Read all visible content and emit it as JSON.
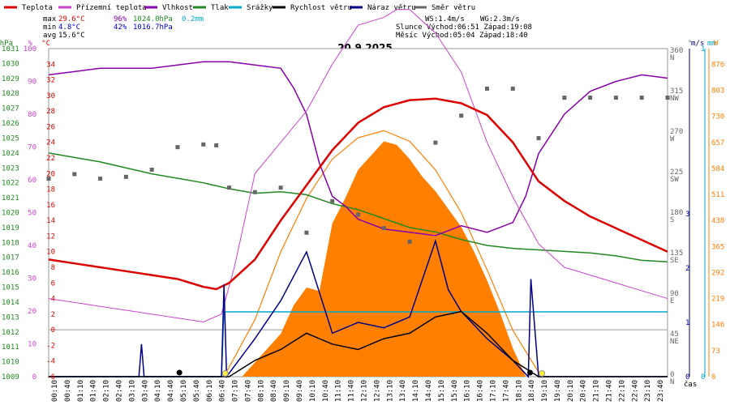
{
  "chart_data": {
    "type": "line",
    "title": "20.9.2025",
    "xlabel": "čas",
    "legend": [
      {
        "name": "Teplota",
        "color": "#dd0000"
      },
      {
        "name": "Přízemní teplota",
        "color": "#cc44cc"
      },
      {
        "name": "Vlhkost",
        "color": "#8800aa"
      },
      {
        "name": "Tlak",
        "color": "#228822"
      },
      {
        "name": "Srážky",
        "color": "#00aacc"
      },
      {
        "name": "Rychlost větru",
        "color": "#000000"
      },
      {
        "name": "Náraz větru",
        "color": "#000088"
      },
      {
        "name": "Směr větru",
        "color": "#666666"
      }
    ],
    "stats": {
      "max_label": "max",
      "max_temp": "29.6°C",
      "max_hum": "96%",
      "max_press": "1024.0hPa",
      "max_rain": "0.2mm",
      "min_label": "min",
      "min_temp": "4.8°C",
      "min_hum": "42%",
      "min_press": "1016.7hPa",
      "avg_label": "avg",
      "avg_temp": "15.6°C"
    },
    "info": {
      "ws": "WS:1.4m/s",
      "wg": "WG:2.3m/s",
      "sun": "Slunce Východ:06:51  Západ:19:08",
      "moon": "Měsíc  Východ:05:04  Západ:18:40"
    },
    "axes": {
      "press_unit": "hPa",
      "hum_unit": "%",
      "temp_unit": "°C",
      "dir_unit": "°",
      "wind_unit": "m/s",
      "rain_unit": "mm",
      "solar_unit": "W",
      "press_range": [
        1009,
        1031
      ],
      "press_ticks": [
        1009,
        1010,
        1011,
        1012,
        1013,
        1014,
        1015,
        1016,
        1017,
        1018,
        1019,
        1020,
        1021,
        1022,
        1023,
        1024,
        1025,
        1026,
        1027,
        1028,
        1029,
        1030,
        1031
      ],
      "hum_range": [
        0,
        100
      ],
      "hum_ticks": [
        0,
        10,
        20,
        30,
        40,
        50,
        60,
        70,
        80,
        90,
        100
      ],
      "temp_range": [
        -6,
        36
      ],
      "temp_ticks": [
        -6,
        -4,
        -2,
        0,
        2,
        4,
        6,
        8,
        10,
        12,
        14,
        16,
        18,
        20,
        22,
        24,
        26,
        28,
        30,
        32,
        34
      ],
      "dir_ticks": [
        {
          "v": "0",
          "l": "N"
        },
        {
          "v": "45",
          "l": "NE"
        },
        {
          "v": "90",
          "l": "E"
        },
        {
          "v": "135",
          "l": "SE"
        },
        {
          "v": "180",
          "l": "S"
        },
        {
          "v": "225",
          "l": "SW"
        },
        {
          "v": "270",
          "l": "W"
        },
        {
          "v": "315",
          "l": "NW"
        },
        {
          "v": "360",
          "l": "N"
        }
      ],
      "wind_ticks": [
        "0",
        "1",
        "2",
        "3"
      ],
      "rain_ticks": [
        "0",
        "1"
      ],
      "solar_range": [
        0,
        920
      ],
      "solar_ticks": [
        0,
        73,
        146,
        219,
        292,
        365,
        438,
        511,
        584,
        657,
        730,
        803,
        876
      ]
    },
    "time_labels": [
      "00:10",
      "00:40",
      "01:10",
      "01:40",
      "02:10",
      "02:40",
      "03:10",
      "03:40",
      "04:10",
      "04:40",
      "05:10",
      "05:40",
      "06:10",
      "06:40",
      "07:10",
      "07:40",
      "08:10",
      "08:40",
      "09:10",
      "09:40",
      "10:10",
      "10:40",
      "11:10",
      "11:40",
      "12:10",
      "12:40",
      "13:10",
      "13:40",
      "14:10",
      "14:40",
      "15:10",
      "15:40",
      "16:10",
      "16:40",
      "17:10",
      "17:40",
      "18:10",
      "18:40",
      "19:10",
      "19:40",
      "20:10",
      "20:40",
      "21:10",
      "21:40",
      "22:10",
      "22:40",
      "23:10",
      "23:40"
    ],
    "series": {
      "temperature": {
        "unit": "°C",
        "x_hours": [
          0,
          1,
          2,
          3,
          4,
          5,
          6,
          6.5,
          7,
          8,
          9,
          10,
          11,
          12,
          13,
          14,
          15,
          16,
          17,
          18,
          19,
          20,
          21,
          22,
          23,
          24
        ],
        "values": [
          9,
          8.5,
          8,
          7.5,
          7,
          6.5,
          5.5,
          5.2,
          6,
          9,
          14,
          18.5,
          23,
          26.5,
          28.5,
          29.4,
          29.6,
          29,
          27.5,
          24,
          19,
          16.5,
          14.5,
          13,
          11.5,
          10
        ]
      },
      "ground_temperature": {
        "unit": "°C",
        "x_hours": [
          0,
          1,
          2,
          3,
          4,
          5,
          6,
          6.7,
          7.2,
          8,
          9,
          10,
          11,
          12,
          13,
          13.5,
          14,
          15,
          16,
          17,
          18,
          18.5,
          19,
          20,
          21,
          22,
          23,
          24
        ],
        "values": [
          4,
          3.5,
          3,
          2.5,
          2,
          1.5,
          1,
          2,
          8,
          20,
          24,
          28,
          34,
          39,
          40,
          41,
          41,
          38,
          33,
          24,
          17,
          14,
          11,
          8,
          7,
          6,
          5,
          4
        ]
      },
      "humidity": {
        "unit": "%",
        "x_hours": [
          0,
          1,
          2,
          3,
          4,
          5,
          6,
          7,
          8,
          9,
          9.5,
          10,
          10.5,
          11,
          11.5,
          12,
          13,
          14,
          15,
          16,
          17,
          18,
          18.5,
          19,
          20,
          21,
          22,
          23,
          24
        ],
        "values": [
          92,
          93,
          94,
          94,
          94,
          95,
          96,
          96,
          95,
          94,
          88,
          80,
          65,
          55,
          52,
          48,
          45,
          44,
          43,
          46,
          44,
          47,
          55,
          68,
          80,
          87,
          90,
          92,
          91
        ]
      },
      "pressure": {
        "unit": "hPa",
        "x_hours": [
          0,
          1,
          2,
          3,
          4,
          5,
          6,
          7,
          8,
          9,
          10,
          11,
          12,
          13,
          14,
          15,
          16,
          17,
          18,
          19,
          20,
          21,
          22,
          23,
          24
        ],
        "values": [
          1024,
          1023.7,
          1023.4,
          1023,
          1022.6,
          1022.3,
          1022,
          1021.6,
          1021.3,
          1021.4,
          1021.2,
          1020.6,
          1020.2,
          1019.6,
          1019,
          1018.7,
          1018.2,
          1017.8,
          1017.6,
          1017.5,
          1017.4,
          1017.3,
          1017.1,
          1016.8,
          1016.7
        ]
      },
      "rain": {
        "unit": "mm",
        "x_hours": [
          0,
          6.7,
          6.8,
          24
        ],
        "values": [
          0,
          0,
          0.2,
          0.2
        ]
      },
      "solar": {
        "unit": "W",
        "x_hours": [
          0,
          7.5,
          8,
          8.5,
          9,
          9.5,
          10,
          10.5,
          11,
          11.5,
          12,
          12.5,
          13,
          13.5,
          14,
          14.5,
          15,
          15.5,
          16,
          16.5,
          17,
          17.5,
          18,
          18.5,
          24
        ],
        "values": [
          0,
          0,
          40,
          80,
          120,
          200,
          250,
          240,
          430,
          500,
          580,
          620,
          660,
          650,
          610,
          560,
          520,
          470,
          420,
          350,
          270,
          180,
          80,
          0,
          0
        ]
      },
      "solar_theory": {
        "unit": "W",
        "x_hours": [
          6.8,
          8,
          9,
          10,
          11,
          12,
          13,
          14,
          15,
          16,
          17,
          18,
          19.1
        ],
        "values": [
          0,
          160,
          350,
          500,
          610,
          670,
          690,
          660,
          580,
          460,
          300,
          130,
          0
        ]
      },
      "wind_speed": {
        "unit": "m/s",
        "x_hours": [
          0,
          7,
          8,
          9,
          10,
          11,
          12,
          13,
          14,
          15,
          16,
          17,
          18,
          19,
          24
        ],
        "values": [
          0,
          0,
          0.3,
          0.5,
          0.8,
          0.6,
          0.5,
          0.7,
          0.8,
          1.1,
          1.2,
          0.8,
          0.3,
          0,
          0
        ]
      },
      "wind_gust": {
        "unit": "m/s",
        "x_hours": [
          0,
          3.5,
          3.6,
          3.7,
          6.7,
          6.8,
          6.9,
          8,
          9,
          10,
          11,
          12,
          13,
          14,
          15,
          15.5,
          16,
          17,
          18,
          18.6,
          18.7,
          19,
          24
        ],
        "values": [
          0,
          0,
          0.6,
          0,
          0,
          1.7,
          0,
          0.7,
          1.4,
          2.3,
          0.8,
          1.0,
          0.9,
          1.1,
          2.5,
          1.6,
          1.2,
          0.7,
          0.3,
          0,
          1.8,
          0,
          0
        ]
      },
      "wind_direction": {
        "unit": "°",
        "x_hours": [
          0,
          1,
          2,
          3,
          4,
          5,
          6,
          6.5,
          7,
          8,
          9,
          10,
          11,
          12,
          13,
          14,
          15,
          16,
          17,
          18,
          19,
          20,
          21,
          22,
          23,
          24
        ],
        "values": [
          220,
          225,
          220,
          222,
          230,
          255,
          258,
          257,
          210,
          205,
          210,
          160,
          195,
          180,
          165,
          150,
          260,
          290,
          320,
          320,
          265,
          310,
          310,
          310,
          310,
          310
        ]
      }
    }
  }
}
